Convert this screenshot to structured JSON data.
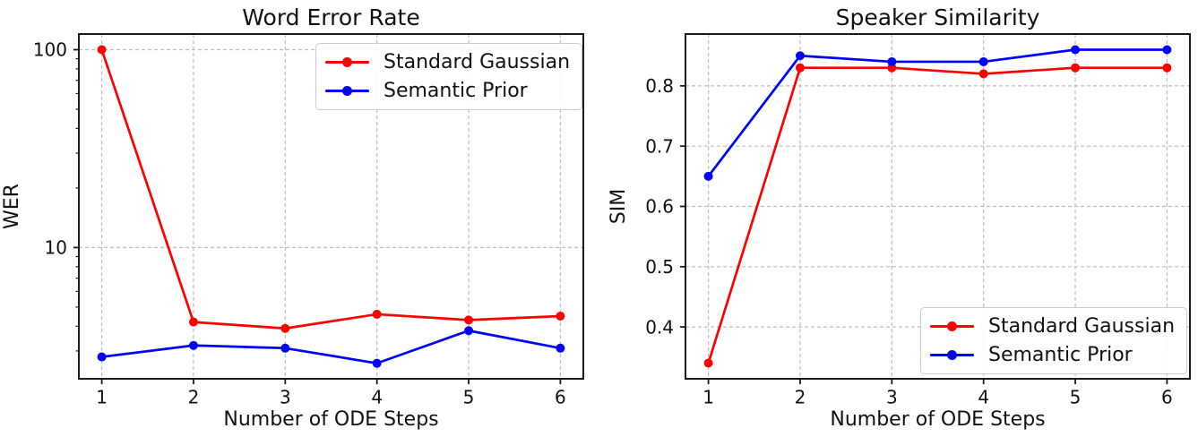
{
  "figure": {
    "background": "#ffffff",
    "text_color": "#111111",
    "grid_color": "#bdbdbd",
    "spine_color": "#1a1a1a"
  },
  "chart_data": [
    {
      "type": "line",
      "title": "Word Error Rate",
      "xlabel": "Number of ODE Steps",
      "ylabel": "WER",
      "yscale": "log",
      "grid": true,
      "x": [
        1,
        2,
        3,
        4,
        5,
        6
      ],
      "xticks": [
        1,
        2,
        3,
        4,
        5,
        6
      ],
      "xtick_labels": [
        "1",
        "2",
        "3",
        "4",
        "5",
        "6"
      ],
      "xlim": [
        0.75,
        6.25
      ],
      "ylim": [
        2.17,
        120
      ],
      "yticks": [
        100,
        10
      ],
      "ytick_labels": [
        "100",
        "10"
      ],
      "minor_yticks": [
        3,
        4,
        5,
        6,
        7,
        8,
        9,
        20,
        30,
        40,
        50,
        60,
        70,
        80,
        90
      ],
      "series": [
        {
          "name": "Standard Gaussian",
          "color": "#ff0000",
          "values": [
            100,
            4.2,
            3.9,
            4.6,
            4.3,
            4.5
          ]
        },
        {
          "name": "Semantic Prior",
          "color": "#0000ff",
          "values": [
            2.8,
            3.2,
            3.1,
            2.6,
            3.8,
            3.1
          ]
        }
      ],
      "legend": {
        "position": "top-right",
        "items": [
          "Standard Gaussian",
          "Semantic Prior"
        ]
      }
    },
    {
      "type": "line",
      "title": "Speaker Similarity",
      "xlabel": "Number of ODE Steps",
      "ylabel": "SIM",
      "yscale": "linear",
      "grid": true,
      "x": [
        1,
        2,
        3,
        4,
        5,
        6
      ],
      "xticks": [
        1,
        2,
        3,
        4,
        5,
        6
      ],
      "xtick_labels": [
        "1",
        "2",
        "3",
        "4",
        "5",
        "6"
      ],
      "xlim": [
        0.75,
        6.25
      ],
      "ylim": [
        0.314,
        0.886
      ],
      "yticks": [
        0.8,
        0.7,
        0.6,
        0.5,
        0.4
      ],
      "ytick_labels": [
        "0.8",
        "0.7",
        "0.6",
        "0.5",
        "0.4"
      ],
      "minor_yticks": [],
      "series": [
        {
          "name": "Standard Gaussian",
          "color": "#ff0000",
          "values": [
            0.34,
            0.83,
            0.83,
            0.82,
            0.83,
            0.83
          ]
        },
        {
          "name": "Semantic Prior",
          "color": "#0000ff",
          "values": [
            0.65,
            0.85,
            0.84,
            0.84,
            0.86,
            0.86
          ]
        }
      ],
      "legend": {
        "position": "bottom-right",
        "items": [
          "Standard Gaussian",
          "Semantic Prior"
        ]
      }
    }
  ]
}
